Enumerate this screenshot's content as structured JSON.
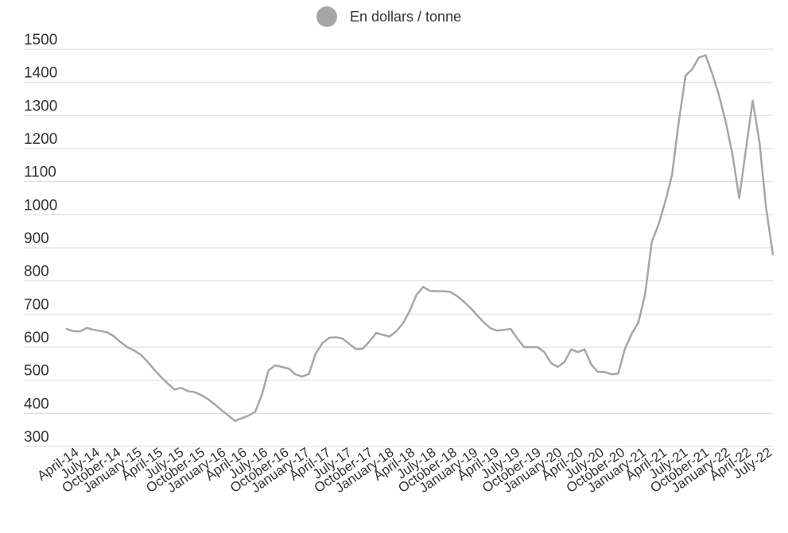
{
  "chart_data": {
    "type": "line",
    "title": "",
    "xlabel": "",
    "ylabel": "",
    "ylim": [
      300,
      1500
    ],
    "yticks": [
      300,
      400,
      500,
      600,
      700,
      800,
      900,
      1000,
      1100,
      1200,
      1300,
      1400,
      1500
    ],
    "grid": true,
    "legend_position": "top-center",
    "series_color": "#a6a6a6",
    "x_tick_labels": [
      "April-14",
      "July-14",
      "October-14",
      "January-15",
      "April-15",
      "July-15",
      "October-15",
      "January-16",
      "April-16",
      "July-16",
      "October-16",
      "January-17",
      "April-17",
      "July-17",
      "October-17",
      "January-18",
      "April-18",
      "July-18",
      "October-18",
      "January-19",
      "April-19",
      "July-19",
      "October-19",
      "January-20",
      "April-20",
      "July-20",
      "October-20",
      "January-21",
      "April-21",
      "July-21",
      "October-21",
      "January-22",
      "April-22",
      "July-22"
    ],
    "series": [
      {
        "name": "En dollars / tonne",
        "values": [
          655,
          648,
          648,
          658,
          652,
          649,
          645,
          633,
          615,
          600,
          590,
          577,
          556,
          532,
          510,
          490,
          472,
          477,
          467,
          464,
          455,
          443,
          427,
          410,
          394,
          377,
          385,
          393,
          404,
          455,
          530,
          545,
          540,
          535,
          518,
          511,
          519,
          580,
          612,
          628,
          630,
          626,
          610,
          594,
          595,
          617,
          643,
          637,
          632,
          648,
          672,
          710,
          758,
          782,
          770,
          769,
          769,
          767,
          755,
          738,
          719,
          697,
          675,
          657,
          650,
          652,
          655,
          626,
          600,
          600,
          600,
          585,
          552,
          540,
          555,
          593,
          585,
          593,
          547,
          525,
          525,
          518,
          520,
          595,
          640,
          675,
          760,
          920,
          970,
          1040,
          1120,
          1280,
          1420,
          1440,
          1475,
          1482,
          1425,
          1360,
          1280,
          1180,
          1050,
          1200,
          1345,
          1220,
          1020,
          880
        ]
      }
    ]
  }
}
